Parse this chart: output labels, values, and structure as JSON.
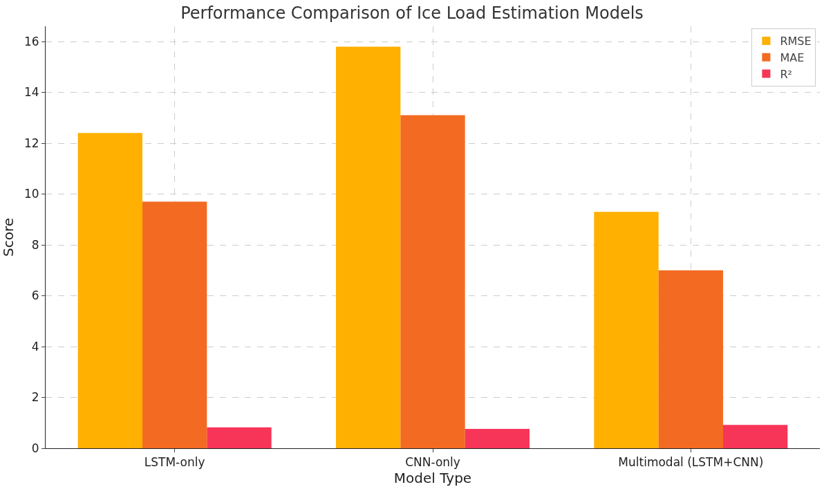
{
  "chart_data": {
    "type": "bar",
    "title": "Performance Comparison of Ice Load Estimation Models",
    "xlabel": "Model Type",
    "ylabel": "Score",
    "categories": [
      "LSTM-only",
      "CNN-only",
      "Multimodal (LSTM+CNN)"
    ],
    "series": [
      {
        "name": "RMSE",
        "color": "#ffb000",
        "values": [
          12.4,
          15.8,
          9.3
        ]
      },
      {
        "name": "MAE",
        "color": "#f36b22",
        "values": [
          9.7,
          13.1,
          7.0
        ]
      },
      {
        "name": "R²",
        "color": "#f73558",
        "values": [
          0.82,
          0.76,
          0.92
        ]
      }
    ],
    "ylim": [
      0,
      16.6
    ],
    "yticks": [
      0,
      2,
      4,
      6,
      8,
      10,
      12,
      14,
      16
    ],
    "grid": true,
    "legend": "top right"
  }
}
